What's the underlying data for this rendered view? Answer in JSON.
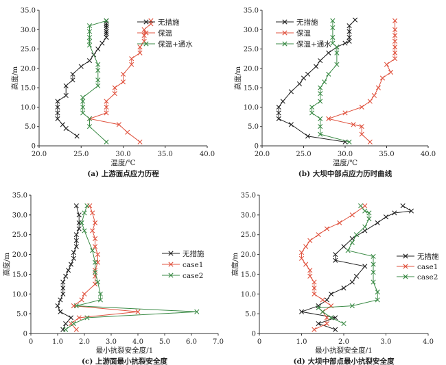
{
  "colors": {
    "无措施": "#222222",
    "保温": "#e0533f",
    "保温+通水": "#3a8a45",
    "case1": "#e0533f",
    "case2": "#3a8a45"
  },
  "chart_data": [
    {
      "type": "line",
      "caption": "(a) 上游面点应力历程",
      "xlabel": "温度/℃",
      "ylabel": "高度/m",
      "xlim": [
        20.0,
        40.0
      ],
      "ylim": [
        0,
        35.0
      ],
      "xticks": [
        "20.0",
        "25.0",
        "30.0",
        "35.0",
        "40.0"
      ],
      "yticks": [
        "0",
        "5.0",
        "10.0",
        "15.0",
        "20.0",
        "25.0",
        "30.0",
        "35.0"
      ],
      "legend_position": "top-right",
      "series": [
        {
          "name": "无措施",
          "x": [
            24.5,
            23.2,
            22.8,
            22.2,
            22.2,
            22.2,
            22.2,
            23.2,
            23.2,
            24.0,
            24.0,
            25.0,
            26.0,
            26.5,
            27.0,
            27.5,
            28.0,
            28.0,
            28.0,
            28.0,
            28.0,
            28.0,
            28.0
          ],
          "y": [
            2.5,
            4.5,
            5.5,
            7.0,
            8.5,
            10.0,
            11.5,
            13.0,
            15.5,
            17.0,
            18.5,
            20.5,
            22.0,
            23.5,
            25.0,
            26.5,
            28.0,
            29.0,
            29.5,
            30.5,
            31.0,
            31.5,
            32.3
          ]
        },
        {
          "name": "保温",
          "x": [
            32.0,
            30.5,
            29.5,
            26.0,
            28.0,
            28.0,
            28.0,
            29.0,
            29.0,
            30.0,
            30.0,
            31.0,
            31.0,
            32.0,
            32.0,
            32.5,
            32.5,
            32.5,
            33.3,
            33.3
          ],
          "y": [
            1.0,
            3.5,
            5.5,
            7.0,
            8.5,
            10.0,
            11.5,
            13.5,
            15.0,
            16.5,
            18.5,
            21.0,
            22.5,
            24.0,
            25.5,
            27.0,
            28.5,
            30.0,
            31.5,
            32.3
          ]
        },
        {
          "name": "保温+通水",
          "x": [
            28.0,
            26.0,
            26.0,
            25.2,
            25.2,
            25.2,
            25.2,
            27.0,
            27.0,
            27.0,
            27.0,
            26.0,
            26.0,
            26.0,
            26.0,
            26.0,
            28.0
          ],
          "y": [
            1.0,
            5.0,
            7.0,
            8.5,
            10.0,
            11.5,
            12.5,
            15.5,
            17.0,
            19.5,
            21.0,
            26.0,
            27.0,
            28.0,
            29.5,
            31.0,
            32.3
          ]
        }
      ]
    },
    {
      "type": "line",
      "caption": "(b) 大坝中部点应力历时曲线",
      "xlabel": "温度/℃",
      "ylabel": "高度/m",
      "xlim": [
        20.0,
        40.0
      ],
      "ylim": [
        0,
        35.0
      ],
      "xticks": [
        "20.0",
        "25.0",
        "30.0",
        "35.0",
        "40.0"
      ],
      "yticks": [
        "0",
        "5.0",
        "10.0",
        "15.0",
        "20.0",
        "25.0",
        "30.0",
        "35.0"
      ],
      "legend_position": "top-right",
      "series": [
        {
          "name": "无措施",
          "x": [
            30.0,
            25.5,
            23.5,
            22.0,
            22.0,
            22.0,
            22.5,
            23.5,
            24.5,
            25.0,
            25.5,
            26.5,
            27.0,
            28.0,
            29.0,
            30.0,
            30.5,
            30.5,
            30.5,
            30.5,
            31.2
          ],
          "y": [
            1.0,
            2.5,
            5.5,
            7.0,
            8.5,
            10.0,
            11.5,
            14.0,
            16.0,
            17.5,
            18.5,
            20.5,
            22.0,
            24.0,
            25.5,
            26.5,
            27.0,
            28.0,
            29.5,
            31.0,
            32.5
          ]
        },
        {
          "name": "保温",
          "x": [
            33.0,
            32.0,
            32.0,
            31.0,
            28.0,
            30.0,
            32.0,
            33.0,
            33.5,
            34.0,
            34.5,
            35.5,
            35.0,
            36.0,
            36.0,
            36.0,
            36.0,
            36.0,
            36.0,
            36.0
          ],
          "y": [
            1.0,
            3.0,
            5.0,
            5.5,
            7.0,
            8.5,
            10.0,
            11.5,
            13.0,
            15.0,
            17.5,
            19.0,
            21.0,
            22.5,
            24.0,
            25.5,
            27.0,
            28.5,
            30.0,
            32.3
          ]
        },
        {
          "name": "保温+通水",
          "x": [
            30.5,
            27.0,
            27.0,
            27.0,
            26.0,
            26.0,
            27.0,
            27.0,
            27.0,
            27.5,
            28.0,
            29.0,
            29.0,
            29.0,
            28.5,
            28.5,
            28.5,
            28.5
          ],
          "y": [
            1.0,
            3.0,
            5.0,
            7.0,
            8.5,
            10.0,
            11.5,
            13.5,
            15.0,
            16.5,
            18.5,
            21.0,
            24.0,
            25.5,
            26.5,
            28.0,
            30.5,
            32.3
          ]
        }
      ]
    },
    {
      "type": "line",
      "caption": "(c) 上游面最小抗裂安全度",
      "xlabel": "最小抗裂安全度/1",
      "ylabel": "高度/m",
      "xlim": [
        0,
        7.0
      ],
      "ylim": [
        0,
        35.0
      ],
      "xticks": [
        "0",
        "1.0",
        "2.0",
        "3.0",
        "4.0",
        "5.0",
        "6.0",
        "7.0"
      ],
      "yticks": [
        "0",
        "5.0",
        "10.0",
        "15.0",
        "20.0",
        "25.0",
        "30.0",
        "35.0"
      ],
      "legend_position": "right",
      "series": [
        {
          "name": "无措施",
          "x": [
            1.2,
            1.3,
            1.5,
            1.1,
            1.0,
            1.1,
            1.2,
            1.2,
            1.2,
            1.3,
            1.4,
            1.5,
            1.6,
            1.6,
            1.7,
            1.7,
            1.7,
            1.8,
            1.8,
            1.8,
            1.7
          ],
          "y": [
            1.0,
            2.5,
            4.0,
            5.5,
            7.0,
            8.5,
            10.0,
            11.5,
            13.0,
            14.5,
            16.0,
            17.5,
            19.0,
            20.5,
            22.0,
            23.5,
            25.0,
            26.5,
            28.0,
            30.0,
            32.3
          ]
        },
        {
          "name": "case1",
          "x": [
            1.7,
            1.5,
            1.8,
            4.0,
            1.6,
            1.9,
            2.0,
            2.4,
            2.4,
            2.4,
            2.5,
            2.5,
            2.4,
            2.4,
            2.3,
            2.4,
            2.3,
            2.2
          ],
          "y": [
            1.0,
            2.5,
            4.0,
            5.5,
            7.0,
            8.5,
            10.0,
            12.5,
            14.5,
            16.0,
            18.0,
            20.0,
            22.0,
            24.0,
            26.0,
            28.0,
            30.5,
            32.3
          ]
        },
        {
          "name": "case2",
          "x": [
            1.3,
            1.6,
            2.1,
            6.2,
            1.7,
            2.6,
            2.6,
            2.5,
            2.4,
            2.4,
            2.3,
            2.0,
            1.9,
            2.0,
            2.1
          ],
          "y": [
            1.0,
            2.5,
            4.0,
            5.5,
            7.0,
            8.5,
            10.0,
            13.0,
            15.5,
            18.0,
            21.0,
            26.0,
            28.0,
            30.5,
            32.3
          ]
        }
      ]
    },
    {
      "type": "line",
      "caption": "(d) 大坝中部点最小抗裂安全度",
      "xlabel": "最小抗裂安全度/1",
      "ylabel": "高度/m",
      "xlim": [
        0,
        4.0
      ],
      "ylim": [
        0,
        35.0
      ],
      "xticks": [
        "0",
        "1.0",
        "2.0",
        "3.0",
        "4.0"
      ],
      "yticks": [
        "0",
        "5.0",
        "10.0",
        "15.0",
        "20.0",
        "25.0",
        "30.0",
        "35.0"
      ],
      "legend_position": "right",
      "series": [
        {
          "name": "无措施",
          "x": [
            1.8,
            1.4,
            1.8,
            1.0,
            1.4,
            1.6,
            1.7,
            2.0,
            2.2,
            2.3,
            2.5,
            1.8,
            1.8,
            2.0,
            2.2,
            2.5,
            2.8,
            3.0,
            3.2,
            3.6,
            3.4
          ],
          "y": [
            1.0,
            2.5,
            4.0,
            5.5,
            7.0,
            8.5,
            10.0,
            11.5,
            13.0,
            14.5,
            17.0,
            18.5,
            20.0,
            22.0,
            24.0,
            26.0,
            28.0,
            29.5,
            30.5,
            31.0,
            32.3
          ]
        },
        {
          "name": "case1",
          "x": [
            1.3,
            1.6,
            1.6,
            1.5,
            1.7,
            1.5,
            1.3,
            1.3,
            1.3,
            1.2,
            1.2,
            1.1,
            1.0,
            1.0,
            1.1,
            1.2,
            1.4,
            1.6,
            1.9,
            2.2,
            2.5
          ],
          "y": [
            1.0,
            2.5,
            4.0,
            5.5,
            7.0,
            8.5,
            10.0,
            11.5,
            13.0,
            14.5,
            16.0,
            17.5,
            19.0,
            20.5,
            22.0,
            23.5,
            25.0,
            26.5,
            28.0,
            30.0,
            32.3
          ]
        },
        {
          "name": "case2",
          "x": [
            2.0,
            1.7,
            1.5,
            1.4,
            2.2,
            2.8,
            2.8,
            2.7,
            2.7,
            2.7,
            2.7,
            2.1,
            2.2,
            2.3,
            2.5,
            2.6,
            2.6,
            2.5,
            2.4
          ],
          "y": [
            2.5,
            4.0,
            5.5,
            6.5,
            7.0,
            8.5,
            10.5,
            13.0,
            15.5,
            17.5,
            19.5,
            21.0,
            23.0,
            25.0,
            27.0,
            29.0,
            30.5,
            31.0,
            32.3
          ]
        }
      ]
    }
  ]
}
